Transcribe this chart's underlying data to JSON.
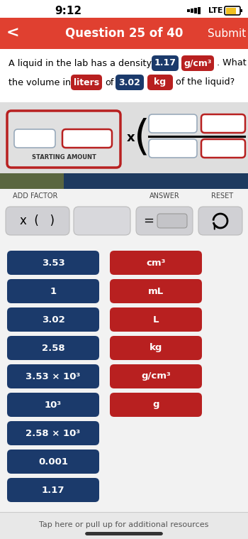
{
  "status_bar_time": "9:12",
  "header_color": "#E04030",
  "header_text": "Question 25 of 40",
  "header_back": "<",
  "header_submit": "Submit",
  "question_val1": "1.17",
  "question_unit1": "g/cm³",
  "question_unit_liters": "liters",
  "question_val2": "3.02",
  "question_unit2": "kg",
  "starting_amount_label": "STARTING AMOUNT",
  "add_factor_label": "ADD FACTOR",
  "answer_label": "ANSWER",
  "reset_label": "RESET",
  "blue_buttons": [
    "3.53",
    "1",
    "3.02",
    "2.58",
    "3.53 × 10³",
    "10³",
    "2.58 × 10³",
    "0.001",
    "1.17"
  ],
  "red_buttons": [
    "cm³",
    "mL",
    "L",
    "kg",
    "g/cm³",
    "g"
  ],
  "blue_color": "#1B3A6B",
  "red_color": "#B82020",
  "bg_light": "#F2F2F2",
  "bg_interactive": "#DEDEDE",
  "bg_dark_left": "#5A6640",
  "bg_dark_right": "#1E3A5F",
  "btn_gray": "#CCCCCC",
  "btn_gray_dark": "#C0C0C4",
  "footer_text": "Tap here or pull up for additional resources",
  "footer_bg": "#E8E8E8"
}
